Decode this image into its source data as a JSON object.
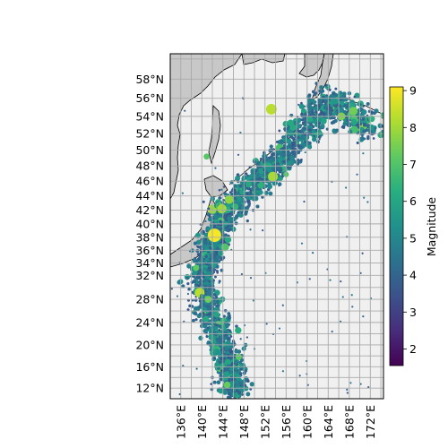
{
  "map": {
    "lon_range": [
      134.0,
      174.5
    ],
    "lat_range": [
      10.0,
      60.5
    ],
    "lat_ticks": [
      "58°N",
      "56°N",
      "54°N",
      "52°N",
      "50°N",
      "48°N",
      "46°N",
      "44°N",
      "42°N",
      "40°N",
      "38°N",
      "36°N",
      "34°N",
      "32°N",
      "28°N",
      "24°N",
      "20°N",
      "16°N",
      "12°N"
    ],
    "lon_ticks": [
      "136°E",
      "140°E",
      "144°E",
      "148°E",
      "152°E",
      "156°E",
      "160°E",
      "164°E",
      "168°E",
      "172°E"
    ],
    "colors": {
      "ocean": "#f0f0f0",
      "land": "#c8c8c8",
      "grid": "#aaaaaa",
      "coast": "#000000"
    }
  },
  "colorbar": {
    "label": "Magnitude",
    "ticks": [
      "2",
      "3",
      "4",
      "5",
      "6",
      "7",
      "8",
      "9"
    ],
    "range": [
      1.55,
      9.1
    ],
    "colormap": "viridis",
    "stops": [
      "#440154",
      "#472d7b",
      "#3b528b",
      "#2c728e",
      "#21918c",
      "#28ae80",
      "#5ec962",
      "#addc30",
      "#fde725"
    ]
  },
  "chart_data": {
    "type": "scatter",
    "xlabel": "",
    "ylabel": "",
    "zlabel": "Magnitude",
    "zlim": [
      1.55,
      9.1
    ],
    "large_events": [
      {
        "lon": 142.4,
        "lat": 38.3,
        "mag": 9.0
      },
      {
        "lon": 153.2,
        "lat": 54.8,
        "mag": 8.3
      },
      {
        "lon": 143.8,
        "lat": 42.2,
        "mag": 8.0
      },
      {
        "lon": 153.5,
        "lat": 46.6,
        "mag": 8.1
      },
      {
        "lon": 166.5,
        "lat": 54.0,
        "mag": 7.6
      },
      {
        "lon": 145.2,
        "lat": 43.5,
        "mag": 7.8
      },
      {
        "lon": 141.2,
        "lat": 28.0,
        "mag": 7.4
      },
      {
        "lon": 147.0,
        "lat": 17.8,
        "mag": 7.2
      },
      {
        "lon": 144.8,
        "lat": 12.6,
        "mag": 7.3
      },
      {
        "lon": 138.9,
        "lat": 33.2,
        "mag": 7.2
      },
      {
        "lon": 140.9,
        "lat": 49.2,
        "mag": 7.1
      },
      {
        "lon": 156.0,
        "lat": 46.9,
        "mag": 7.0
      }
    ]
  }
}
